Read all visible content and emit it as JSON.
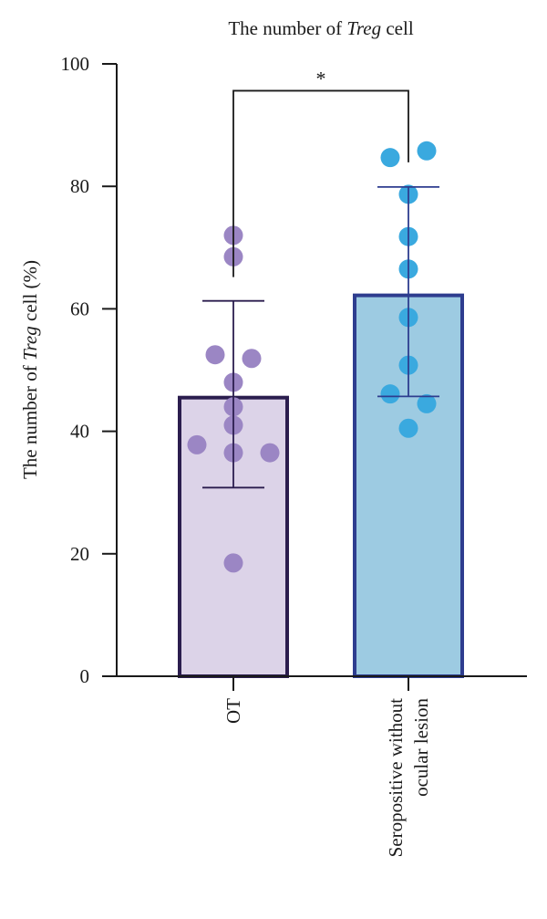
{
  "chart_data": {
    "type": "bar",
    "title_parts": [
      "The number of ",
      "Treg",
      " cell"
    ],
    "ylabel_parts": [
      "The number of ",
      "Treg",
      " cell (%)"
    ],
    "ylim": [
      0,
      100
    ],
    "yticks": [
      0,
      20,
      40,
      60,
      80,
      100
    ],
    "categories": [
      {
        "label_lines": [
          "OT"
        ]
      },
      {
        "label_lines": [
          "Seropositive without",
          "ocular lesion"
        ]
      }
    ],
    "series": [
      {
        "values": [
          45.5,
          62.2
        ],
        "error_low": [
          30.8,
          45.7
        ],
        "error_high": [
          61.3,
          79.9
        ],
        "fill_colors": [
          "#dcd3e8",
          "#9dcbe2"
        ],
        "edge_colors": [
          "#2b1d4e",
          "#2e3d8f"
        ]
      }
    ],
    "points": [
      {
        "color": "#9b86c4",
        "values": [
          72.0,
          68.5,
          52.5,
          51.9,
          48.0,
          44.0,
          41.0,
          37.8,
          36.5,
          36.5,
          18.5
        ],
        "offsets": [
          0,
          0,
          -1,
          1,
          0,
          0,
          0,
          -2,
          0,
          2,
          0
        ]
      },
      {
        "color": "#3aa9df",
        "values": [
          85.8,
          84.7,
          78.7,
          71.8,
          66.5,
          58.6,
          50.8,
          46.1,
          44.5,
          40.5
        ],
        "offsets": [
          1,
          -1,
          0,
          0,
          0,
          0,
          0,
          -1,
          1,
          0
        ]
      }
    ],
    "significance": {
      "from": 0,
      "to": 1,
      "y": 98,
      "label": "*"
    },
    "grid": false,
    "legend": "none"
  }
}
